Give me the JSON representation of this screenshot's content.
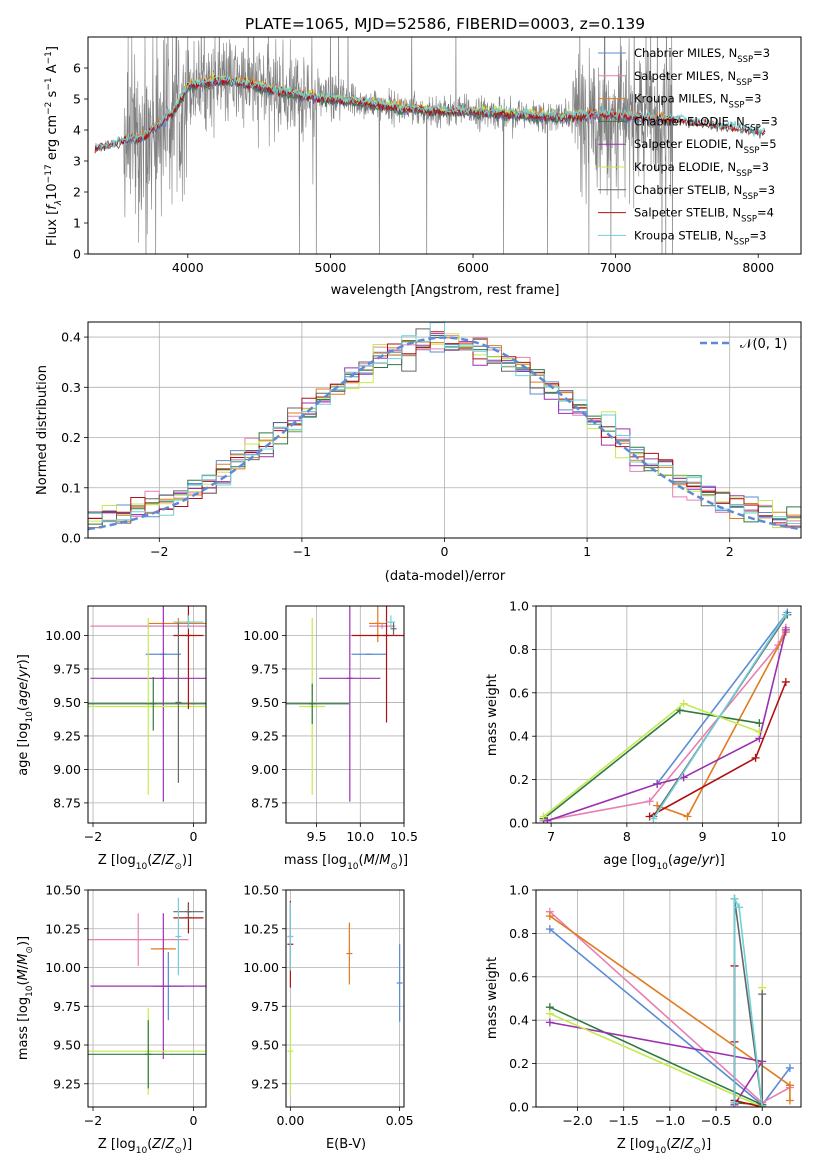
{
  "colors": {
    "chabrier_miles": "#5b8bd6",
    "salpeter_miles": "#e87fb3",
    "kroupa_miles": "#e07b1f",
    "chabrier_elodie": "#2f7a3f",
    "salpeter_elodie": "#9b30b0",
    "kroupa_elodie": "#c5ea4f",
    "chabrier_stelib": "#666666",
    "salpeter_stelib": "#b01010",
    "kroupa_stelib": "#6fd0d6",
    "data": "#808080",
    "normal": "#5b8bd6",
    "grid": "#b0b0b0"
  },
  "chart_data": [
    {
      "id": "spectrum",
      "type": "line",
      "title": "PLATE=1065, MJD=52586, FIBERID=0003, z=0.139",
      "xlabel": "wavelength [Angstrom, rest frame]",
      "ylabel_main": "Flux [",
      "ylabel_sub": "f",
      "ylabel_rest": "10",
      "xlim": [
        3300,
        8300
      ],
      "ylim": [
        0,
        7
      ],
      "xticks": [
        "4000",
        "5000",
        "6000",
        "7000",
        "8000"
      ],
      "xtick_values": [
        4000,
        5000,
        6000,
        7000,
        8000
      ],
      "yticks": [
        "0",
        "1",
        "2",
        "3",
        "4",
        "5",
        "6"
      ],
      "ytick_values": [
        0,
        1,
        2,
        3,
        4,
        5,
        6
      ],
      "legend": [
        {
          "label": "Chabrier MILES, N",
          "sub": "SSP",
          "tail": "=3",
          "color": "chabrier_miles"
        },
        {
          "label": "Salpeter MILES, N",
          "sub": "SSP",
          "tail": "=3",
          "color": "salpeter_miles"
        },
        {
          "label": "Kroupa MILES, N",
          "sub": "SSP",
          "tail": "=3",
          "color": "kroupa_miles"
        },
        {
          "label": "Chabrier ELODIE, N",
          "sub": "SSP",
          "tail": "=3",
          "color": "chabrier_elodie"
        },
        {
          "label": "Salpeter ELODIE, N",
          "sub": "SSP",
          "tail": "=5",
          "color": "salpeter_elodie"
        },
        {
          "label": "Kroupa ELODIE, N",
          "sub": "SSP",
          "tail": "=3",
          "color": "kroupa_elodie"
        },
        {
          "label": "Chabrier STELIB, N",
          "sub": "SSP",
          "tail": "=3",
          "color": "chabrier_stelib"
        },
        {
          "label": "Salpeter STELIB, N",
          "sub": "SSP",
          "tail": "=4",
          "color": "salpeter_stelib"
        },
        {
          "label": "Kroupa STELIB, N",
          "sub": "SSP",
          "tail": "=3",
          "color": "kroupa_stelib"
        }
      ],
      "continuum": [
        [
          3350,
          3.4
        ],
        [
          3500,
          3.6
        ],
        [
          3700,
          3.8
        ],
        [
          3900,
          4.6
        ],
        [
          4000,
          5.4
        ],
        [
          4200,
          5.6
        ],
        [
          4400,
          5.5
        ],
        [
          4600,
          5.3
        ],
        [
          4800,
          5.1
        ],
        [
          5000,
          5.0
        ],
        [
          5200,
          4.9
        ],
        [
          5500,
          4.7
        ],
        [
          5800,
          4.6
        ],
        [
          6000,
          4.6
        ],
        [
          6300,
          4.5
        ],
        [
          6600,
          4.4
        ],
        [
          6900,
          4.5
        ],
        [
          7200,
          4.4
        ],
        [
          7500,
          4.3
        ],
        [
          7800,
          4.1
        ],
        [
          8050,
          3.9
        ]
      ]
    },
    {
      "id": "residuals",
      "type": "step",
      "xlabel": "(data-model)/error",
      "ylabel": "Normed distribution",
      "xlim": [
        -2.5,
        2.5
      ],
      "ylim": [
        0,
        0.43
      ],
      "xticks": [
        "−2",
        "−1",
        "0",
        "1",
        "2"
      ],
      "xtick_values": [
        -2,
        -1,
        0,
        1,
        2
      ],
      "yticks": [
        "0.0",
        "0.1",
        "0.2",
        "0.3",
        "0.4"
      ],
      "ytick_values": [
        0,
        0.1,
        0.2,
        0.3,
        0.4
      ],
      "legend_label": "𝒩(0, 1)",
      "bin_width": 0.1
    },
    {
      "id": "age_vs_Z",
      "type": "errorbar",
      "xlabel": "Z [log",
      "ylabel": "age  [log",
      "xlim": [
        -2.1,
        0.25
      ],
      "ylim": [
        8.6,
        10.22
      ],
      "xticks": [
        "−2",
        "0"
      ],
      "xtick_values": [
        -2,
        0
      ],
      "yticks": [
        "8.75",
        "9.00",
        "9.25",
        "9.50",
        "9.75",
        "10.00"
      ],
      "ytick_values": [
        8.75,
        9.0,
        9.25,
        9.5,
        9.75,
        10.0
      ],
      "points": [
        {
          "color": "chabrier_miles",
          "x": -0.6,
          "xerr": 0.35,
          "y": 9.86,
          "yerr": 0.0
        },
        {
          "color": "salpeter_miles",
          "x": -0.9,
          "xerr": 1.15,
          "y": 10.07,
          "yerr": 0.02
        },
        {
          "color": "kroupa_miles",
          "x": -0.3,
          "xerr": 0.6,
          "y": 10.09,
          "yerr": 0.04
        },
        {
          "color": "salpeter_elodie",
          "x": -0.6,
          "xerr": 1.45,
          "y": 9.68,
          "yerr": 0.92
        },
        {
          "color": "kroupa_elodie",
          "x": -0.9,
          "xerr": 1.2,
          "y": 9.47,
          "yerr": 0.66
        },
        {
          "color": "chabrier_elodie",
          "x": -0.8,
          "xerr": 1.3,
          "y": 9.49,
          "yerr": 0.2
        },
        {
          "color": "salpeter_stelib",
          "x": -0.1,
          "xerr": 0.3,
          "y": 10.0,
          "yerr": 0.55
        },
        {
          "color": "chabrier_stelib",
          "x": -0.3,
          "xerr": 0.0,
          "y": 9.5,
          "yerr": 0.6
        },
        {
          "color": "kroupa_stelib",
          "x": -0.1,
          "xerr": 0.3,
          "y": 10.1,
          "yerr": 0.05
        }
      ]
    },
    {
      "id": "age_vs_mass",
      "type": "errorbar",
      "xlabel": "mass [log",
      "xlim": [
        9.15,
        10.5
      ],
      "ylim": [
        8.6,
        10.22
      ],
      "xticks": [
        "9.5",
        "10.0",
        "10.5"
      ],
      "xtick_values": [
        9.5,
        10.0,
        10.5
      ],
      "yticks": [
        "8.75",
        "9.00",
        "9.25",
        "9.50",
        "9.75",
        "10.00"
      ],
      "ytick_values": [
        8.75,
        9.0,
        9.25,
        9.5,
        9.75,
        10.0
      ],
      "points": [
        {
          "color": "chabrier_miles",
          "x": 10.1,
          "xerr": 0.2,
          "y": 9.86,
          "yerr": 0.0
        },
        {
          "color": "salpeter_miles",
          "x": 10.25,
          "xerr": 0.15,
          "y": 10.07,
          "yerr": 0.02
        },
        {
          "color": "kroupa_miles",
          "x": 10.2,
          "xerr": 0.1,
          "y": 10.09,
          "yerr": 0.14
        },
        {
          "color": "salpeter_elodie",
          "x": 9.88,
          "xerr": 0.35,
          "y": 9.68,
          "yerr": 0.92
        },
        {
          "color": "kroupa_elodie",
          "x": 9.45,
          "xerr": 0.15,
          "y": 9.47,
          "yerr": 0.66
        },
        {
          "color": "chabrier_elodie",
          "x": 9.45,
          "xerr": 0.42,
          "y": 9.49,
          "yerr": 0.15
        },
        {
          "color": "salpeter_stelib",
          "x": 10.3,
          "xerr": 0.4,
          "y": 10.0,
          "yerr": 0.65
        },
        {
          "color": "chabrier_stelib",
          "x": 10.38,
          "xerr": 0.0,
          "y": 10.05,
          "yerr": 0.05
        },
        {
          "color": "kroupa_stelib",
          "x": 10.35,
          "xerr": 0.05,
          "y": 10.1,
          "yerr": 0.05
        }
      ]
    },
    {
      "id": "weight_vs_age",
      "type": "line",
      "xlabel": "age  [log",
      "ylabel": "mass weight",
      "xlim": [
        6.8,
        10.3
      ],
      "ylim": [
        0,
        1.0
      ],
      "xticks": [
        "7",
        "8",
        "9",
        "10"
      ],
      "xtick_values": [
        7,
        8,
        9,
        10
      ],
      "yticks": [
        "0.0",
        "0.2",
        "0.4",
        "0.6",
        "0.8",
        "1.0"
      ],
      "ytick_values": [
        0,
        0.2,
        0.4,
        0.6,
        0.8,
        1.0
      ],
      "series": [
        {
          "color": "chabrier_miles",
          "x": [
            8.4,
            10.12
          ],
          "y": [
            0.18,
            0.97
          ]
        },
        {
          "color": "salpeter_miles",
          "x": [
            6.9,
            8.3,
            10.0,
            10.1
          ],
          "y": [
            0.01,
            0.1,
            0.82,
            0.9
          ]
        },
        {
          "color": "kroupa_miles",
          "x": [
            8.4,
            8.8,
            10.1
          ],
          "y": [
            0.08,
            0.03,
            0.88
          ]
        },
        {
          "color": "chabrier_elodie",
          "x": [
            6.9,
            8.7,
            9.75
          ],
          "y": [
            0.02,
            0.52,
            0.46
          ]
        },
        {
          "color": "salpeter_elodie",
          "x": [
            6.95,
            8.4,
            8.75,
            9.75,
            10.1
          ],
          "y": [
            0.01,
            0.18,
            0.21,
            0.39,
            0.89
          ]
        },
        {
          "color": "kroupa_elodie",
          "x": [
            6.9,
            8.75,
            9.75
          ],
          "y": [
            0.03,
            0.55,
            0.42
          ]
        },
        {
          "color": "chabrier_stelib",
          "x": [
            8.35,
            10.12
          ],
          "y": [
            0.03,
            0.96
          ]
        },
        {
          "color": "salpeter_stelib",
          "x": [
            8.3,
            9.7,
            10.1
          ],
          "y": [
            0.03,
            0.3,
            0.65
          ]
        },
        {
          "color": "kroupa_stelib",
          "x": [
            8.35,
            10.1
          ],
          "y": [
            0.02,
            0.96
          ]
        }
      ]
    },
    {
      "id": "mass_vs_Z",
      "type": "errorbar",
      "xlabel": "Z [log",
      "ylabel": "mass [log",
      "xlim": [
        -2.1,
        0.25
      ],
      "ylim": [
        9.1,
        10.5
      ],
      "xticks": [
        "−2",
        "0"
      ],
      "xtick_values": [
        -2,
        0
      ],
      "yticks": [
        "9.25",
        "9.50",
        "9.75",
        "10.00",
        "10.25",
        "10.50"
      ],
      "ytick_values": [
        9.25,
        9.5,
        9.75,
        10.0,
        10.25,
        10.5
      ],
      "points": [
        {
          "color": "chabrier_miles",
          "x": -0.5,
          "xerr": 0.3,
          "y": 9.88,
          "yerr": 0.22
        },
        {
          "color": "salpeter_miles",
          "x": -1.1,
          "xerr": 1.0,
          "y": 10.18,
          "yerr": 0.17
        },
        {
          "color": "kroupa_miles",
          "x": -0.6,
          "xerr": 0.25,
          "y": 10.12,
          "yerr": 0.0
        },
        {
          "color": "salpeter_elodie",
          "x": -0.6,
          "xerr": 1.45,
          "y": 9.88,
          "yerr": 0.47
        },
        {
          "color": "kroupa_elodie",
          "x": -0.9,
          "xerr": 1.2,
          "y": 9.46,
          "yerr": 0.28
        },
        {
          "color": "chabrier_elodie",
          "x": -0.9,
          "xerr": 1.2,
          "y": 9.44,
          "yerr": 0.22
        },
        {
          "color": "salpeter_stelib",
          "x": -0.1,
          "xerr": 0.3,
          "y": 10.32,
          "yerr": 0.1
        },
        {
          "color": "chabrier_stelib",
          "x": -0.1,
          "xerr": 0.3,
          "y": 10.36,
          "yerr": 0.05
        },
        {
          "color": "kroupa_stelib",
          "x": -0.3,
          "xerr": 0.0,
          "y": 10.2,
          "yerr": 0.25
        }
      ]
    },
    {
      "id": "mass_vs_ebv",
      "type": "errorbar",
      "xlabel": "E(B-V)",
      "xlim": [
        -0.002,
        0.052
      ],
      "ylim": [
        9.1,
        10.5
      ],
      "xticks": [
        "0.00",
        "0.05"
      ],
      "xtick_values": [
        0.0,
        0.05
      ],
      "yticks": [
        "9.25",
        "9.50",
        "9.75",
        "10.00",
        "10.25",
        "10.50"
      ],
      "ytick_values": [
        9.25,
        9.5,
        9.75,
        10.0,
        10.25,
        10.5
      ],
      "points": [
        {
          "color": "chabrier_miles",
          "x": 0.05,
          "xerr": 0,
          "y": 9.9,
          "yerr": 0.25
        },
        {
          "color": "kroupa_miles",
          "x": 0.027,
          "xerr": 0,
          "y": 10.09,
          "yerr": 0.2
        },
        {
          "color": "salpeter_stelib",
          "x": 0.0,
          "xerr": 0,
          "y": 10.15,
          "yerr": 0.28
        },
        {
          "color": "salpeter_miles",
          "x": 0.0,
          "xerr": 0,
          "y": 10.2,
          "yerr": 0.2
        },
        {
          "color": "kroupa_elodie",
          "x": 0.0,
          "xerr": 0,
          "y": 9.46,
          "yerr": 0.28
        },
        {
          "color": "kroupa_stelib",
          "x": 0.0,
          "xerr": 0,
          "y": 10.2,
          "yerr": 0.22
        }
      ]
    },
    {
      "id": "weight_vs_Z",
      "type": "line",
      "xlabel": "Z [log",
      "ylabel": "mass weight",
      "xlim": [
        -2.45,
        0.42
      ],
      "ylim": [
        0,
        1.0
      ],
      "xticks": [
        "−2.0",
        "−1.5",
        "−1.0",
        "−0.5",
        "0.0"
      ],
      "xtick_values": [
        -2.0,
        -1.5,
        -1.0,
        -0.5,
        0.0
      ],
      "yticks": [
        "0.0",
        "0.2",
        "0.4",
        "0.6",
        "0.8",
        "1.0"
      ],
      "ytick_values": [
        0,
        0.2,
        0.4,
        0.6,
        0.8,
        1.0
      ],
      "series": [
        {
          "color": "chabrier_miles",
          "x": [
            -2.3,
            0.0,
            0.3
          ],
          "y": [
            0.82,
            0.01,
            0.18
          ]
        },
        {
          "color": "salpeter_miles",
          "x": [
            -2.3,
            0.0,
            0.3
          ],
          "y": [
            0.9,
            0.02,
            0.09
          ]
        },
        {
          "color": "kroupa_miles",
          "x": [
            -2.3,
            0.3,
            0.3
          ],
          "y": [
            0.88,
            0.1,
            0.03
          ]
        },
        {
          "color": "chabrier_elodie",
          "x": [
            -2.3,
            0.0,
            -0.3
          ],
          "y": [
            0.46,
            0.01,
            0.02
          ]
        },
        {
          "color": "salpeter_elodie",
          "x": [
            -2.3,
            0.0,
            -0.3,
            -0.3
          ],
          "y": [
            0.39,
            0.21,
            0.01,
            0.02
          ]
        },
        {
          "color": "kroupa_elodie",
          "x": [
            -2.3,
            0.0,
            0.0
          ],
          "y": [
            0.43,
            0.0,
            0.55
          ]
        },
        {
          "color": "chabrier_stelib",
          "x": [
            -0.3,
            -0.3,
            0.0,
            0.0
          ],
          "y": [
            0.03,
            0.96,
            0.0,
            0.52
          ]
        },
        {
          "color": "salpeter_stelib",
          "x": [
            -0.3,
            -0.3,
            -0.3,
            0.0
          ],
          "y": [
            0.65,
            0.3,
            0.03,
            0.0
          ]
        },
        {
          "color": "kroupa_stelib",
          "x": [
            -0.3,
            -0.3,
            -0.25,
            0.0
          ],
          "y": [
            0.02,
            0.96,
            0.92,
            0.0
          ]
        }
      ]
    }
  ]
}
